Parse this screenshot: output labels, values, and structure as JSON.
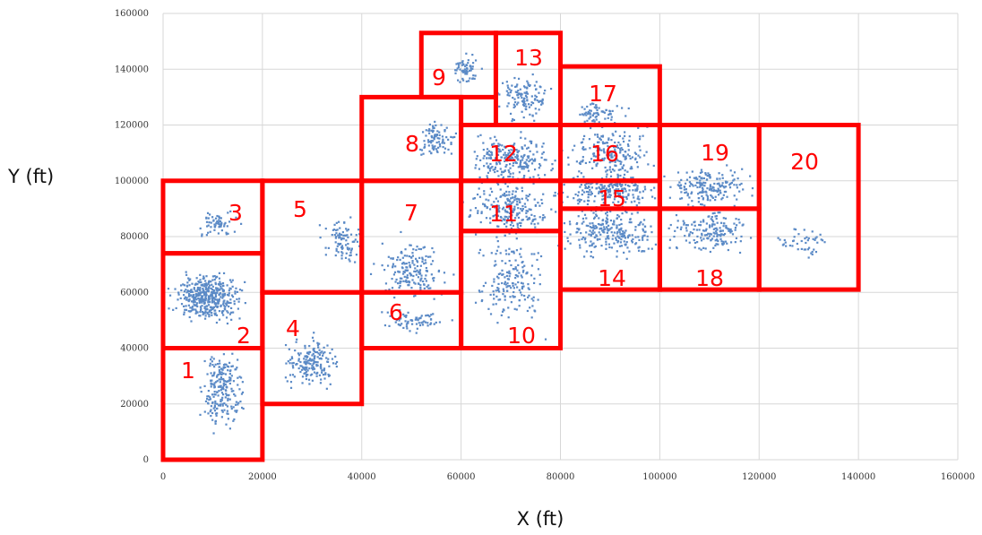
{
  "chart_data": {
    "type": "scatter",
    "title": "",
    "xlabel": "X (ft)",
    "ylabel": "Y (ft)",
    "xlim": [
      0,
      160000
    ],
    "ylim": [
      0,
      160000
    ],
    "x_ticks": [
      0,
      20000,
      40000,
      60000,
      80000,
      100000,
      120000,
      140000,
      160000
    ],
    "y_ticks": [
      0,
      20000,
      40000,
      60000,
      80000,
      100000,
      120000,
      140000,
      160000
    ],
    "x_tick_labels": [
      "0",
      "20000",
      "40000",
      "60000",
      "80000",
      "100000",
      "120000",
      "140000",
      "160000"
    ],
    "y_tick_labels": [
      "0",
      "20000",
      "40000",
      "60000",
      "80000",
      "100000",
      "120000",
      "140000",
      "160000"
    ],
    "grid": true,
    "point_color": "#5b8ac6",
    "zone_color": "#ff0000",
    "zones": [
      {
        "label": "1",
        "x0": 0,
        "y0": 0,
        "x1": 20000,
        "y1": 40000
      },
      {
        "label": "2",
        "x0": 0,
        "y0": 40000,
        "x1": 20000,
        "y1": 74000
      },
      {
        "label": "3",
        "x0": 0,
        "y0": 74000,
        "x1": 20000,
        "y1": 100000
      },
      {
        "label": "4",
        "x0": 20000,
        "y0": 20000,
        "x1": 40000,
        "y1": 60000
      },
      {
        "label": "5",
        "x0": 20000,
        "y0": 60000,
        "x1": 40000,
        "y1": 100000
      },
      {
        "label": "6",
        "x0": 40000,
        "y0": 40000,
        "x1": 60000,
        "y1": 60000
      },
      {
        "label": "7",
        "x0": 40000,
        "y0": 60000,
        "x1": 60000,
        "y1": 100000
      },
      {
        "label": "8",
        "x0": 40000,
        "y0": 100000,
        "x1": 60000,
        "y1": 130000
      },
      {
        "label": "9",
        "x0": 52000,
        "y0": 130000,
        "x1": 67000,
        "y1": 153000
      },
      {
        "label": "10",
        "x0": 60000,
        "y0": 40000,
        "x1": 80000,
        "y1": 82000
      },
      {
        "label": "11",
        "x0": 60000,
        "y0": 82000,
        "x1": 80000,
        "y1": 100000
      },
      {
        "label": "12",
        "x0": 60000,
        "y0": 100000,
        "x1": 80000,
        "y1": 120000
      },
      {
        "label": "13",
        "x0": 67000,
        "y0": 120000,
        "x1": 80000,
        "y1": 153000
      },
      {
        "label": "14",
        "x0": 80000,
        "y0": 61000,
        "x1": 100000,
        "y1": 90000
      },
      {
        "label": "15",
        "x0": 80000,
        "y0": 90000,
        "x1": 100000,
        "y1": 100000
      },
      {
        "label": "16",
        "x0": 80000,
        "y0": 100000,
        "x1": 100000,
        "y1": 120000
      },
      {
        "label": "17",
        "x0": 80000,
        "y0": 120000,
        "x1": 100000,
        "y1": 141000
      },
      {
        "label": "18",
        "x0": 100000,
        "y0": 61000,
        "x1": 120000,
        "y1": 90000
      },
      {
        "label": "19",
        "x0": 100000,
        "y0": 90000,
        "x1": 120000,
        "y1": 120000
      },
      {
        "label": "20",
        "x0": 120000,
        "y0": 61000,
        "x1": 140000,
        "y1": 120000
      }
    ],
    "point_clusters": [
      {
        "cx": 9000,
        "cy": 58000,
        "sx": 5000,
        "sy": 6000,
        "n": 420
      },
      {
        "cx": 12000,
        "cy": 25000,
        "sx": 3000,
        "sy": 11000,
        "n": 220
      },
      {
        "cx": 11000,
        "cy": 85000,
        "sx": 3000,
        "sy": 4000,
        "n": 60
      },
      {
        "cx": 30000,
        "cy": 35000,
        "sx": 4000,
        "sy": 6000,
        "n": 180
      },
      {
        "cx": 36000,
        "cy": 78000,
        "sx": 3000,
        "sy": 6000,
        "n": 90
      },
      {
        "cx": 50000,
        "cy": 68000,
        "sx": 5000,
        "sy": 8000,
        "n": 180
      },
      {
        "cx": 50000,
        "cy": 50000,
        "sx": 5000,
        "sy": 3000,
        "n": 70
      },
      {
        "cx": 55000,
        "cy": 115000,
        "sx": 3000,
        "sy": 5000,
        "n": 90
      },
      {
        "cx": 61000,
        "cy": 140000,
        "sx": 2000,
        "sy": 4000,
        "n": 60
      },
      {
        "cx": 70000,
        "cy": 65000,
        "sx": 5000,
        "sy": 12000,
        "n": 180
      },
      {
        "cx": 70000,
        "cy": 90000,
        "sx": 6000,
        "sy": 7000,
        "n": 230
      },
      {
        "cx": 70000,
        "cy": 108000,
        "sx": 6000,
        "sy": 7000,
        "n": 230
      },
      {
        "cx": 73000,
        "cy": 130000,
        "sx": 4000,
        "sy": 6000,
        "n": 120
      },
      {
        "cx": 90000,
        "cy": 82000,
        "sx": 7000,
        "sy": 7000,
        "n": 260
      },
      {
        "cx": 90000,
        "cy": 97000,
        "sx": 7000,
        "sy": 4000,
        "n": 200
      },
      {
        "cx": 90000,
        "cy": 110000,
        "sx": 6000,
        "sy": 7000,
        "n": 200
      },
      {
        "cx": 88000,
        "cy": 124000,
        "sx": 4000,
        "sy": 3000,
        "n": 70
      },
      {
        "cx": 110000,
        "cy": 82000,
        "sx": 6000,
        "sy": 6000,
        "n": 170
      },
      {
        "cx": 110000,
        "cy": 98000,
        "sx": 6000,
        "sy": 5000,
        "n": 180
      },
      {
        "cx": 129000,
        "cy": 78000,
        "sx": 4000,
        "sy": 4000,
        "n": 45
      }
    ]
  }
}
